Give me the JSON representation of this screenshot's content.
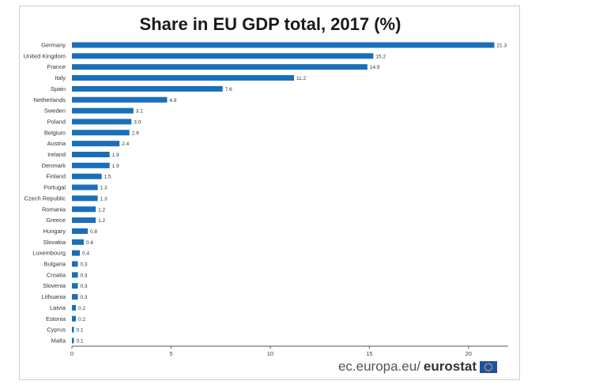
{
  "chart_data": {
    "type": "bar",
    "orientation": "horizontal",
    "title": "Share in EU GDP total, 2017 (%)",
    "categories": [
      "Germany",
      "United Kingdom",
      "France",
      "Italy",
      "Spain",
      "Netherlands",
      "Sweden",
      "Poland",
      "Belgium",
      "Austria",
      "Ireland",
      "Denmark",
      "Finland",
      "Portugal",
      "Czech Republic",
      "Romania",
      "Greece",
      "Hungary",
      "Slovakia",
      "Luxembourg",
      "Bulgaria",
      "Croatia",
      "Slovenia",
      "Lithuania",
      "Latvia",
      "Estonia",
      "Cyprus",
      "Malta"
    ],
    "values": [
      21.3,
      15.2,
      14.9,
      11.2,
      7.6,
      4.8,
      3.1,
      3.0,
      2.9,
      2.4,
      1.9,
      1.9,
      1.5,
      1.3,
      1.3,
      1.2,
      1.2,
      0.8,
      0.6,
      0.4,
      0.3,
      0.3,
      0.3,
      0.3,
      0.2,
      0.2,
      0.1,
      0.1
    ],
    "value_labels": [
      "21.3",
      "15.2",
      "14.9",
      "11.2",
      "7.6",
      "4.8",
      "3.1",
      "3.0",
      "2.9",
      "2.4",
      "1.9",
      "1.9",
      "1.5",
      "1.3",
      "1.3",
      "1.2",
      "1.2",
      "0.8",
      "0.6",
      "0.4",
      "0.3",
      "0.3",
      "0.3",
      "0.3",
      "0.2",
      "0.2",
      "0.1",
      "0.1"
    ],
    "xlim": [
      0,
      22
    ],
    "xticks": [
      0,
      5,
      10,
      15,
      20
    ],
    "xtick_labels": [
      "0",
      "5",
      "10",
      "15",
      "20"
    ],
    "grid": false,
    "legend": "none",
    "bar_color": "#1a6fb8"
  },
  "footer": {
    "source_prefix": "ec.europa.eu/",
    "source_brand": "eurostat",
    "flag_icon": "eu-flag-icon",
    "flag_color": "#1f4ea8",
    "star_color": "#ffdd00"
  }
}
